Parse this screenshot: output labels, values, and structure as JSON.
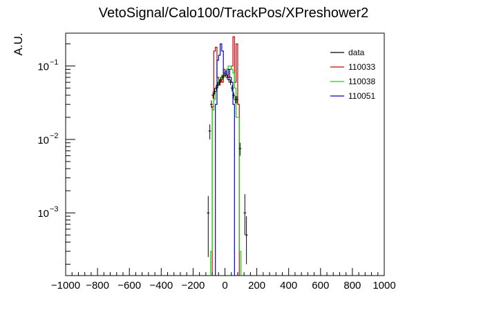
{
  "chart_data": {
    "type": "histogram",
    "title": "VetoSignal/Calo100/TrackPos/XPreshower2",
    "xlabel": "",
    "ylabel": "A.U.",
    "xlim": [
      -1000,
      1000
    ],
    "ylim": [
      0.00014,
      0.28
    ],
    "y_scale": "log",
    "grid": false,
    "legend_position": "top-right",
    "x_major_ticks": [
      -1000,
      -800,
      -600,
      -400,
      -200,
      0,
      200,
      400,
      600,
      800,
      1000
    ],
    "x_tick_labels": [
      "−1000",
      "−800",
      "−600",
      "−400",
      "−200",
      "0",
      "200",
      "400",
      "600",
      "800",
      "1000"
    ],
    "y_tick_labels": [
      {
        "value": 0.1,
        "base": "10",
        "exp": "−1"
      },
      {
        "value": 0.01,
        "base": "10",
        "exp": "−2"
      },
      {
        "value": 0.001,
        "base": "10",
        "exp": "−3"
      }
    ],
    "bin_width": 10,
    "series": [
      {
        "name": "110033",
        "color": "#cc0000",
        "style": "step",
        "bins": [
          {
            "x0": -80,
            "y": 0.028
          },
          {
            "x0": -70,
            "y": 0.16
          },
          {
            "x0": -60,
            "y": 0.18
          },
          {
            "x0": -50,
            "y": 0.07
          },
          {
            "x0": -40,
            "y": 0.055
          },
          {
            "x0": -30,
            "y": 0.065
          },
          {
            "x0": -20,
            "y": 0.06
          },
          {
            "x0": -10,
            "y": 0.09
          },
          {
            "x0": 0,
            "y": 0.08
          },
          {
            "x0": 10,
            "y": 0.09
          },
          {
            "x0": 20,
            "y": 0.07
          },
          {
            "x0": 30,
            "y": 0.09
          },
          {
            "x0": 40,
            "y": 0.1
          },
          {
            "x0": 50,
            "y": 0.25
          },
          {
            "x0": 60,
            "y": 0.06
          },
          {
            "x0": 70,
            "y": 0.2
          },
          {
            "x0": 80,
            "y": 0.03
          }
        ]
      },
      {
        "name": "110038",
        "color": "#00dd00",
        "style": "step",
        "bins": [
          {
            "x0": -90,
            "y": 0.0003
          },
          {
            "x0": -80,
            "y": 0.025
          },
          {
            "x0": -70,
            "y": 0.035
          },
          {
            "x0": -60,
            "y": 0.045
          },
          {
            "x0": -50,
            "y": 0.055
          },
          {
            "x0": -40,
            "y": 0.065
          },
          {
            "x0": -30,
            "y": 0.07
          },
          {
            "x0": -20,
            "y": 0.075
          },
          {
            "x0": -10,
            "y": 0.08
          },
          {
            "x0": 0,
            "y": 0.085
          },
          {
            "x0": 10,
            "y": 0.09
          },
          {
            "x0": 20,
            "y": 0.1
          },
          {
            "x0": 30,
            "y": 0.1
          },
          {
            "x0": 40,
            "y": 0.09
          },
          {
            "x0": 50,
            "y": 0.08
          },
          {
            "x0": 60,
            "y": 0.05
          },
          {
            "x0": 70,
            "y": 0.02
          },
          {
            "x0": 80,
            "y": 0.02
          },
          {
            "x0": 90,
            "y": 0.0003
          }
        ]
      },
      {
        "name": "110051",
        "color": "#0000cc",
        "style": "step",
        "bins": [
          {
            "x0": -60,
            "y": 0.03
          },
          {
            "x0": -50,
            "y": 0.12
          },
          {
            "x0": -40,
            "y": 0.14
          },
          {
            "x0": -30,
            "y": 0.2
          },
          {
            "x0": -20,
            "y": 0.16
          },
          {
            "x0": -10,
            "y": 0.08
          },
          {
            "x0": 0,
            "y": 0.085
          },
          {
            "x0": 10,
            "y": 0.075
          },
          {
            "x0": 20,
            "y": 0.09
          },
          {
            "x0": 30,
            "y": 0.07
          },
          {
            "x0": 40,
            "y": 0.06
          },
          {
            "x0": 50,
            "y": 0.03
          }
        ]
      },
      {
        "name": "data",
        "color": "#000000",
        "style": "points",
        "points": [
          {
            "x": -105,
            "y": 0.001,
            "err": [
              0.00025,
              0.0017
            ]
          },
          {
            "x": -95,
            "y": 0.013,
            "err": [
              0.01,
              0.016
            ]
          },
          {
            "x": -85,
            "y": 0.03,
            "err": [
              0.027,
              0.034
            ]
          },
          {
            "x": -75,
            "y": 0.04,
            "err": [
              0.036,
              0.044
            ]
          },
          {
            "x": -65,
            "y": 0.045,
            "err": [
              0.041,
              0.05
            ]
          },
          {
            "x": -55,
            "y": 0.05,
            "err": [
              0.046,
              0.055
            ]
          },
          {
            "x": -45,
            "y": 0.055,
            "err": [
              0.05,
              0.06
            ]
          },
          {
            "x": -35,
            "y": 0.06,
            "err": [
              0.055,
              0.065
            ]
          },
          {
            "x": -25,
            "y": 0.065,
            "err": [
              0.06,
              0.07
            ]
          },
          {
            "x": -15,
            "y": 0.07,
            "err": [
              0.065,
              0.075
            ]
          },
          {
            "x": -5,
            "y": 0.075,
            "err": [
              0.07,
              0.08
            ]
          },
          {
            "x": 5,
            "y": 0.075,
            "err": [
              0.07,
              0.08
            ]
          },
          {
            "x": 15,
            "y": 0.07,
            "err": [
              0.065,
              0.075
            ]
          },
          {
            "x": 25,
            "y": 0.065,
            "err": [
              0.06,
              0.07
            ]
          },
          {
            "x": 35,
            "y": 0.06,
            "err": [
              0.055,
              0.065
            ]
          },
          {
            "x": 45,
            "y": 0.05,
            "err": [
              0.045,
              0.055
            ]
          },
          {
            "x": 55,
            "y": 0.04,
            "err": [
              0.036,
              0.044
            ]
          },
          {
            "x": 65,
            "y": 0.035,
            "err": [
              0.031,
              0.039
            ]
          },
          {
            "x": 75,
            "y": 0.035,
            "err": [
              0.031,
              0.039
            ]
          },
          {
            "x": 95,
            "y": 0.0075,
            "err": [
              0.006,
              0.009
            ]
          },
          {
            "x": 125,
            "y": 0.001,
            "err": [
              0.0005,
              0.0018
            ]
          },
          {
            "x": 135,
            "y": 0.0005,
            "err": [
              0.0002,
              0.0009
            ]
          }
        ]
      }
    ],
    "legend": [
      {
        "label": "data",
        "color": "#000000"
      },
      {
        "label": "110033",
        "color": "#cc0000"
      },
      {
        "label": "110038",
        "color": "#00dd00"
      },
      {
        "label": "110051",
        "color": "#0000cc"
      }
    ]
  }
}
